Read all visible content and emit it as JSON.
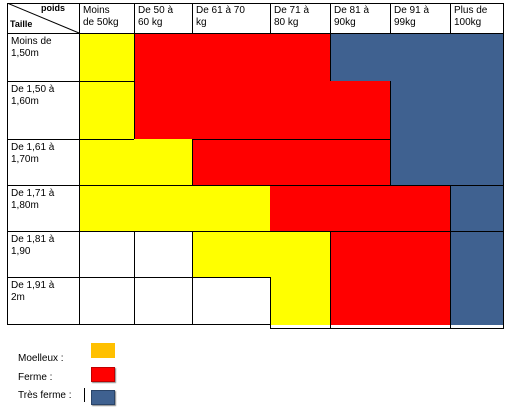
{
  "header": {
    "corner_top": "poids",
    "corner_bottom": "Taille",
    "weights": [
      "Moins de 50kg",
      "De 50 à 60 kg",
      "De 61 à 70 kg",
      "De 71 à 80 kg",
      "De 81 à 90kg",
      "De 91 à 99kg",
      "Plus de 100kg"
    ],
    "weight_lines": [
      [
        "Moins",
        "de 50kg"
      ],
      [
        "De 50 à",
        "60 kg"
      ],
      [
        "De 61 à 70",
        "kg"
      ],
      [
        "De 71 à",
        "80 kg"
      ],
      [
        "De 81 à",
        "90kg"
      ],
      [
        "De 91 à",
        "99kg"
      ],
      [
        "Plus de",
        "100kg"
      ]
    ]
  },
  "rows": [
    {
      "height_lines": [
        "Moins de",
        "1,50m"
      ],
      "height": "Moins de 1,50m"
    },
    {
      "height_lines": [
        "De 1,50 à",
        "1,60m"
      ],
      "height": "De 1,50 à 1,60m"
    },
    {
      "height_lines": [
        "De 1,61 à",
        "1,70m"
      ],
      "height": "De 1,61 à 1,70m"
    },
    {
      "height_lines": [
        "De 1,71 à",
        "1,80m"
      ],
      "height": "De 1,71 à 1,80m"
    },
    {
      "height_lines": [
        "De 1,81 à",
        "1,90"
      ],
      "height": "De 1,81 à 1,90"
    },
    {
      "height_lines": [
        "De 1,91 à",
        "2m"
      ],
      "height": "De 1,91 à 2m"
    }
  ],
  "legend": {
    "moelleux": "Moelleux :",
    "ferme": "Ferme :",
    "tres_ferme": "Très ferme :"
  },
  "colors": {
    "moelleux": "#ffff00",
    "ferme": "#ff0000",
    "tres_ferme": "#3f6190",
    "legend_moelleux": "#ffc000"
  }
}
